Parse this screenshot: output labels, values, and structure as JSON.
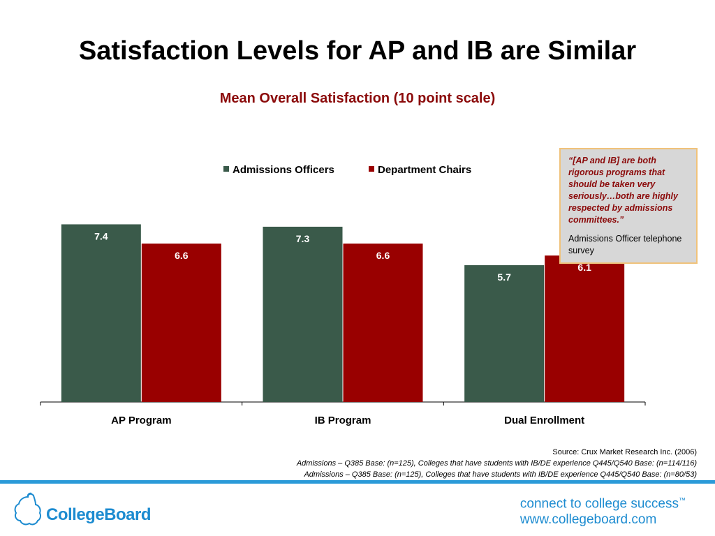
{
  "page": {
    "title": "Satisfaction Levels for AP and IB are Similar",
    "subtitle": "Mean Overall Satisfaction (10 point scale)"
  },
  "chart_data": {
    "type": "bar",
    "categories": [
      "AP Program",
      "IB Program",
      "Dual Enrollment"
    ],
    "series": [
      {
        "name": "Admissions Officers",
        "values": [
          7.4,
          7.3,
          5.7
        ],
        "color": "#3a5a4a"
      },
      {
        "name": "Department Chairs",
        "values": [
          6.6,
          6.6,
          6.1
        ],
        "color": "#990000"
      }
    ],
    "title": "",
    "xlabel": "",
    "ylabel": "",
    "ylim": [
      0,
      10
    ],
    "legend": "top",
    "grid": false
  },
  "quote": {
    "text": "“[AP and IB] are both rigorous programs that should be taken very seriously…both are highly respected by admissions committees.”",
    "source": "Admissions Officer telephone survey"
  },
  "sources": {
    "line1": "Source: Crux Market Research Inc. (2006)",
    "line2": "Admissions – Q385 Base: (n=125), Colleges that have students with IB/DE experience Q445/Q540 Base: (n=114/116)",
    "line3": "Admissions – Q385 Base: (n=125), Colleges that have students with IB/DE experience Q445/Q540 Base: (n=80/53)"
  },
  "footer": {
    "logo_text": "CollegeBoard",
    "logo_icon": "acorn-icon",
    "tagline_line1": "connect to college success",
    "trademark": "™",
    "tagline_line2": "www.collegeboard.com",
    "brand_color": "#1c8bd0"
  }
}
